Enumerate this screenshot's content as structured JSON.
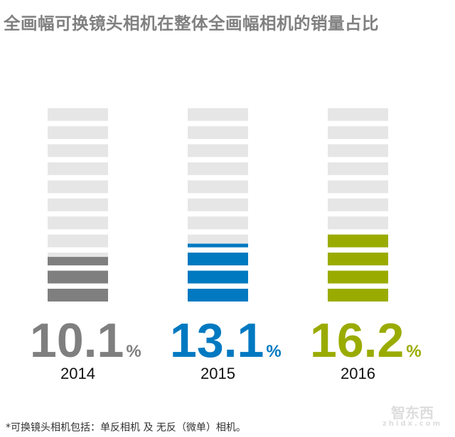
{
  "title": "全画幅可换镜头相机在整体全画幅相机的销量占比",
  "chart_data": {
    "type": "bar",
    "title": "全画幅可换镜头相机在整体全画幅相机的销量占比",
    "categories": [
      "2014",
      "2015",
      "2016"
    ],
    "values": [
      10.1,
      13.1,
      16.2
    ],
    "value_labels": [
      "10.1",
      "13.1",
      "16.2"
    ],
    "unit": "%",
    "colors": [
      "#7f7f7f",
      "#0079c1",
      "#9aab00"
    ],
    "background_color": "#e6e6e6",
    "stripes": 11,
    "ylim": [
      0,
      45
    ],
    "grid": false
  },
  "footnote": "*可换镜头相机包括：单反相机 及 无反（微单）相机。",
  "watermark": {
    "logo": "智东西",
    "url": "zhidx.com"
  }
}
